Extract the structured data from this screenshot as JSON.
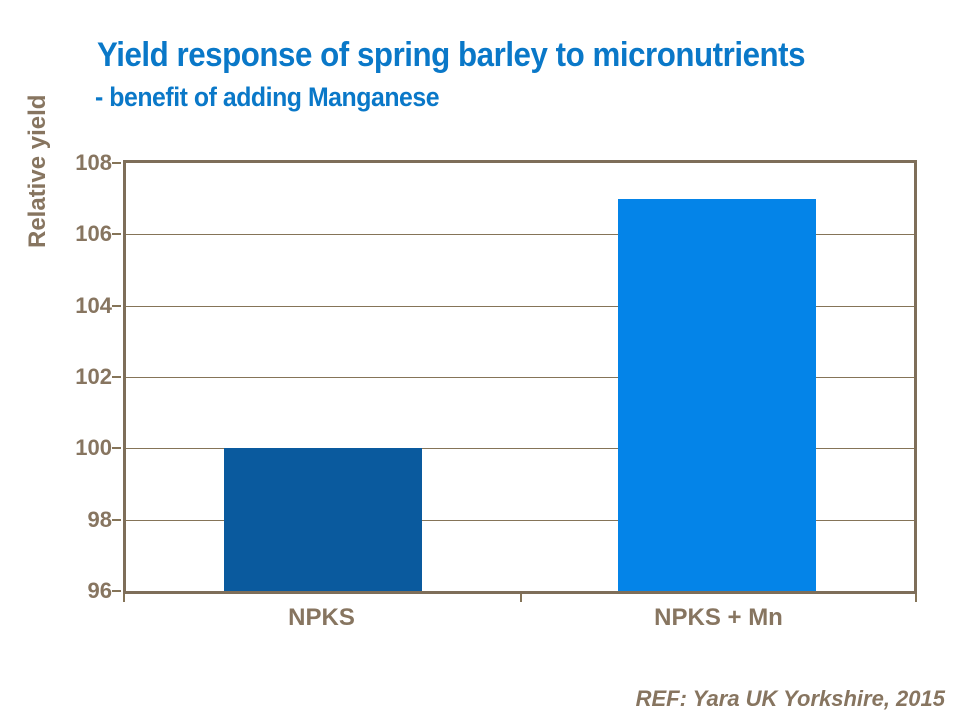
{
  "header": {
    "title": "Yield response of spring barley to micronutrients",
    "subtitle": "- benefit of adding Manganese"
  },
  "footer": {
    "reference": "REF: Yara UK Yorkshire, 2015"
  },
  "colors": {
    "title_blue": "#0a78c8",
    "bar_npks": "#0a5a9e",
    "bar_npks_mn": "#0484e8",
    "axis_text": "#877560",
    "axis_line": "#7e6e59"
  },
  "chart_data": {
    "type": "bar",
    "title": "Yield response of spring barley to micronutrients - benefit of adding Manganese",
    "categories": [
      "NPKS",
      "NPKS + Mn"
    ],
    "values": [
      100,
      107
    ],
    "series_colors": [
      "#0a5a9e",
      "#0484e8"
    ],
    "xlabel": "",
    "ylabel": "Relative yield",
    "ylim": [
      96,
      108
    ],
    "yticks": [
      96,
      98,
      100,
      102,
      104,
      106,
      108
    ],
    "grid": true,
    "legend": false,
    "source": "REF: Yara UK Yorkshire, 2015"
  }
}
